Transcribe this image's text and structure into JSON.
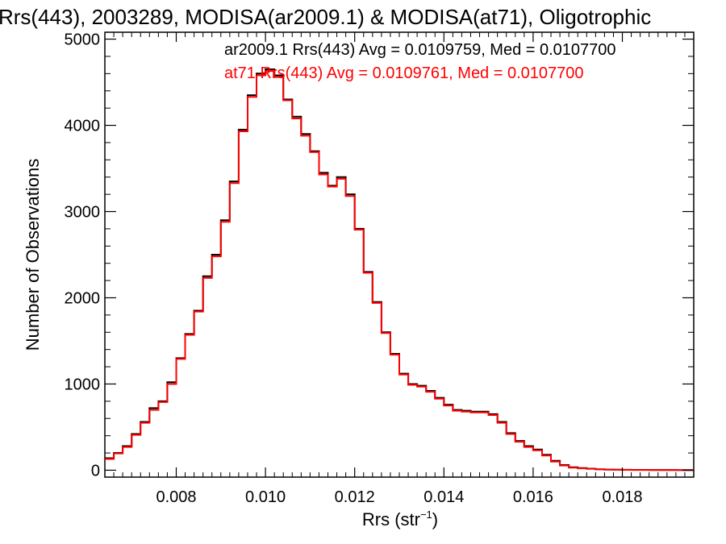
{
  "chart_data": {
    "type": "line",
    "step": true,
    "title": "Rrs(443), 2003289, MODISA(ar2009.1) & MODISA(at71), Oligotrophic",
    "xlabel": "Rrs (str",
    "xlabel_sup": "−1",
    "xlabel_end": ")",
    "ylabel": "Number of Observations",
    "xlim": [
      0.0064,
      0.0196
    ],
    "ylim": [
      -80,
      5080
    ],
    "xticks": [
      0.008,
      0.01,
      0.012,
      0.014,
      0.016,
      0.018
    ],
    "xtick_labels": [
      "0.008",
      "0.010",
      "0.012",
      "0.014",
      "0.016",
      "0.018"
    ],
    "yticks": [
      0,
      1000,
      2000,
      3000,
      4000,
      5000
    ],
    "ytick_labels": [
      "0",
      "1000",
      "2000",
      "3000",
      "4000",
      "5000"
    ],
    "grid": false,
    "annotations": [
      {
        "text": "ar2009.1 Rrs(443) Avg = 0.0109759, Med = 0.0107700",
        "color": "#000000"
      },
      {
        "text": "at71 Rrs(443) Avg = 0.0109761, Med = 0.0107700",
        "color": "#ff0000"
      }
    ],
    "x": [
      0.0064,
      0.0066,
      0.0068,
      0.007,
      0.0072,
      0.0074,
      0.0076,
      0.0078,
      0.008,
      0.0082,
      0.0084,
      0.0086,
      0.0088,
      0.009,
      0.0092,
      0.0094,
      0.0096,
      0.0098,
      0.01,
      0.0102,
      0.0104,
      0.0106,
      0.0108,
      0.011,
      0.0112,
      0.0114,
      0.0116,
      0.0118,
      0.012,
      0.0122,
      0.0124,
      0.0126,
      0.0128,
      0.013,
      0.0132,
      0.0134,
      0.0136,
      0.0138,
      0.014,
      0.0142,
      0.0144,
      0.0146,
      0.0148,
      0.015,
      0.0152,
      0.0154,
      0.0156,
      0.0158,
      0.016,
      0.0162,
      0.0164,
      0.0166,
      0.0168,
      0.017,
      0.0172,
      0.0174,
      0.0176,
      0.0178,
      0.018,
      0.0182,
      0.0184,
      0.0186,
      0.0188,
      0.019,
      0.0192,
      0.0194,
      0.0196
    ],
    "series": [
      {
        "name": "ar2009.1",
        "color": "#000000",
        "values": [
          140,
          200,
          280,
          420,
          560,
          720,
          800,
          1020,
          1300,
          1580,
          1850,
          2250,
          2500,
          2900,
          3350,
          3950,
          4350,
          4600,
          4650,
          4580,
          4300,
          4100,
          3900,
          3700,
          3450,
          3300,
          3400,
          3200,
          2800,
          2300,
          1950,
          1600,
          1350,
          1120,
          1000,
          980,
          920,
          840,
          760,
          700,
          690,
          680,
          680,
          650,
          560,
          430,
          340,
          280,
          240,
          180,
          110,
          60,
          35,
          25,
          18,
          12,
          8,
          6,
          5,
          4,
          4,
          3,
          3,
          3,
          2,
          2,
          2
        ]
      },
      {
        "name": "at71",
        "color": "#ff0000",
        "values": [
          130,
          195,
          270,
          410,
          550,
          700,
          790,
          1000,
          1290,
          1570,
          1840,
          2230,
          2480,
          2880,
          3330,
          3930,
          4330,
          4580,
          4630,
          4560,
          4290,
          4080,
          3880,
          3690,
          3430,
          3290,
          3380,
          3180,
          2790,
          2290,
          1940,
          1590,
          1340,
          1110,
          990,
          970,
          910,
          830,
          750,
          690,
          680,
          670,
          670,
          640,
          550,
          420,
          330,
          270,
          230,
          170,
          100,
          55,
          30,
          22,
          15,
          10,
          7,
          5,
          4,
          3,
          3,
          2,
          2,
          2,
          1,
          1,
          1
        ]
      }
    ]
  }
}
